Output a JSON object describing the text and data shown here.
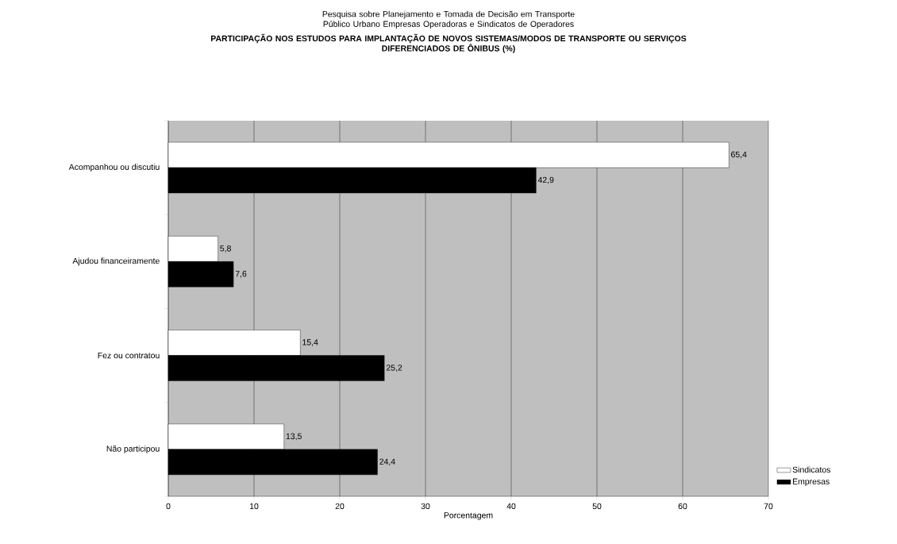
{
  "chart_data": {
    "type": "bar",
    "orientation": "horizontal",
    "title": "PARTICIPAÇÃO NOS ESTUDOS PARA IMPLANTAÇÃO DE NOVOS SISTEMAS/MODOS DE TRANSPORTE OU SERVIÇOS DIFERENCIADOS DE ÔNIBUS (%)",
    "subtitle": "Pesquisa sobre Planejamento e Tomada de Decisão em Transporte Público Urbano Empresas Operadoras e Sindicatos de Operadores",
    "xlabel": "Porcentagem",
    "categories": [
      "Acompanhou ou discutiu",
      "Ajudou financeiramente",
      "Fez ou contratou",
      "Não participou"
    ],
    "series": [
      {
        "name": "Sindicatos",
        "color": "#ffffff",
        "values": [
          65.4,
          5.8,
          15.4,
          13.5
        ],
        "value_labels": [
          "65,4",
          "5,8",
          "15,4",
          "13,5"
        ]
      },
      {
        "name": "Empresas",
        "color": "#000000",
        "values": [
          42.9,
          7.6,
          25.2,
          24.4
        ],
        "value_labels": [
          "42,9",
          "7,6",
          "25,2",
          "24,4"
        ]
      }
    ],
    "xlim": [
      0,
      70
    ],
    "xticks": [
      0,
      10,
      20,
      30,
      40,
      50,
      60,
      70
    ],
    "grid": "x",
    "legend": "right"
  }
}
